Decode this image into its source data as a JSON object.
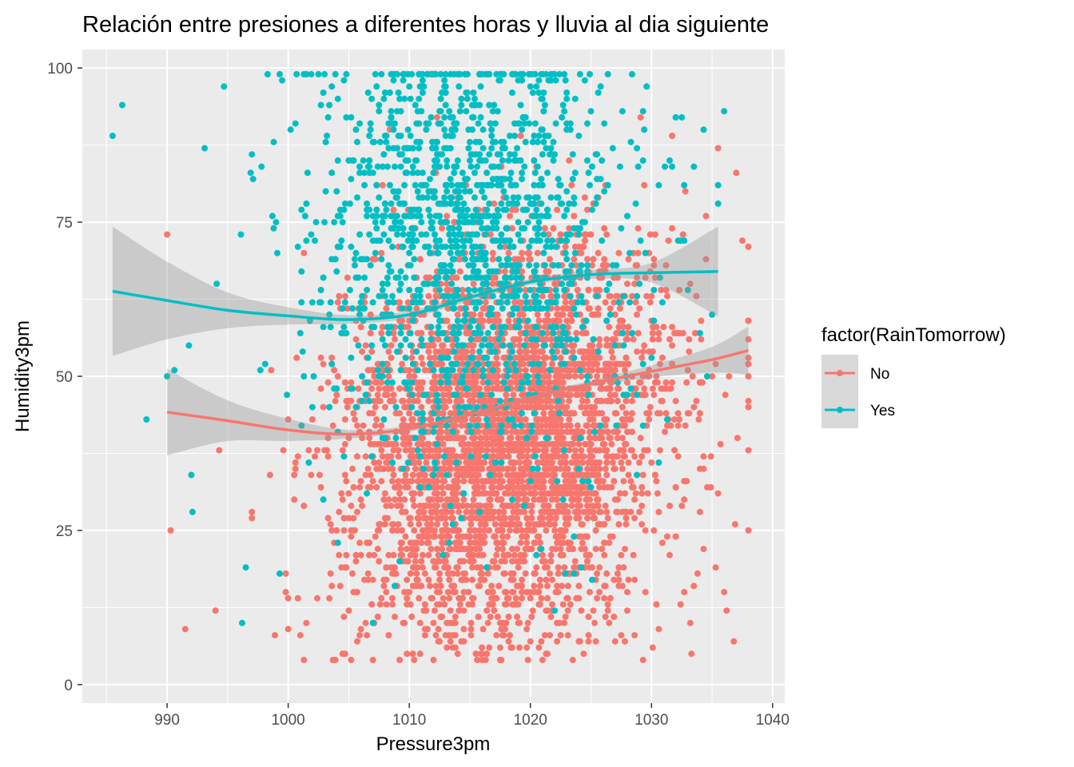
{
  "chart_data": {
    "type": "scatter",
    "title": "Relación entre presiones a diferentes horas y lluvia al dia siguiente",
    "xlabel": "Pressure3pm",
    "ylabel": "Humidity3pm",
    "xlim": [
      983,
      1041
    ],
    "ylim": [
      -3,
      103
    ],
    "x_ticks": [
      "990",
      "1000",
      "1010",
      "1020",
      "1030",
      "1040"
    ],
    "y_ticks": [
      "0",
      "25",
      "50",
      "75",
      "100"
    ],
    "x_tick_values": [
      990,
      1000,
      1010,
      1020,
      1030,
      1040
    ],
    "y_tick_values": [
      0,
      25,
      50,
      75,
      100
    ],
    "grid": true,
    "background": "#ebebeb",
    "legend": {
      "title": "factor(RainTomorrow)",
      "position": "right",
      "entries": [
        "No",
        "Yes"
      ]
    },
    "series": [
      {
        "name": "No",
        "color": "#f8766d",
        "point_cloud": {
          "count": 3800,
          "center": [
            1018,
            42
          ],
          "spread": [
            7,
            15
          ],
          "x_range": [
            990,
            1038
          ],
          "y_range": [
            4,
            92
          ],
          "outliers": [
            [
              990,
              73
            ],
            [
              990.3,
              25
            ],
            [
              991.5,
              9
            ],
            [
              994,
              12
            ],
            [
              1009.5,
              99
            ],
            [
              1011.5,
              99
            ],
            [
              1035.5,
              87
            ],
            [
              1037,
              83
            ],
            [
              1037.5,
              72
            ],
            [
              1038,
              45
            ],
            [
              1021,
              4
            ],
            [
              1016,
              5
            ],
            [
              1007,
              4
            ],
            [
              1032,
              24
            ],
            [
              1028,
              15
            ],
            [
              1029.5,
              15
            ],
            [
              1033.5,
              16
            ]
          ]
        },
        "smooth": {
          "x": [
            990,
            995,
            1000,
            1005,
            1010,
            1015,
            1020,
            1025,
            1030,
            1035,
            1038
          ],
          "y": [
            44.2,
            42.8,
            41.3,
            40.6,
            41.5,
            43.8,
            46.5,
            48.8,
            50.8,
            52.7,
            54.2
          ],
          "ci_low": [
            37.2,
            39.5,
            39.5,
            39.9,
            41.0,
            43.4,
            46.1,
            48.3,
            49.8,
            50.6,
            50.3
          ],
          "ci_high": [
            51.2,
            46.1,
            43.1,
            41.3,
            42.0,
            44.2,
            46.9,
            49.3,
            51.8,
            54.8,
            58.1
          ]
        }
      },
      {
        "name": "Yes",
        "color": "#00bfc4",
        "point_cloud": {
          "count": 1500,
          "center": [
            1015,
            70
          ],
          "spread": [
            7,
            16
          ],
          "x_range": [
            985.5,
            1036
          ],
          "y_range": [
            10,
            99
          ],
          "outliers": [
            [
              985.5,
              89
            ],
            [
              986.3,
              94
            ],
            [
              988.3,
              43
            ],
            [
              990,
              50
            ],
            [
              990.6,
              51
            ],
            [
              991.8,
              55
            ],
            [
              992,
              34
            ],
            [
              992.1,
              28
            ],
            [
              994.7,
              97
            ],
            [
              996.2,
              10
            ],
            [
              996.5,
              19
            ],
            [
              1001.5,
              99
            ],
            [
              1002.5,
              99
            ],
            [
              1035.5,
              78
            ],
            [
              1034.3,
              90
            ],
            [
              1032,
              92
            ],
            [
              1032.5,
              92
            ],
            [
              1033.5,
              84
            ]
          ]
        },
        "smooth": {
          "x": [
            985.5,
            990,
            995,
            1000,
            1005,
            1010,
            1015,
            1020,
            1025,
            1030,
            1035.5
          ],
          "y": [
            63.8,
            62.3,
            60.7,
            59.8,
            59.2,
            60.0,
            62.8,
            65.3,
            66.5,
            66.8,
            67.0
          ],
          "ci_low": [
            53.3,
            56.0,
            57.8,
            58.4,
            58.5,
            59.4,
            62.2,
            64.8,
            65.8,
            65.2,
            59.7
          ],
          "ci_high": [
            74.3,
            68.6,
            63.6,
            61.2,
            59.9,
            60.6,
            63.4,
            65.8,
            67.2,
            68.4,
            74.3
          ]
        }
      }
    ]
  }
}
